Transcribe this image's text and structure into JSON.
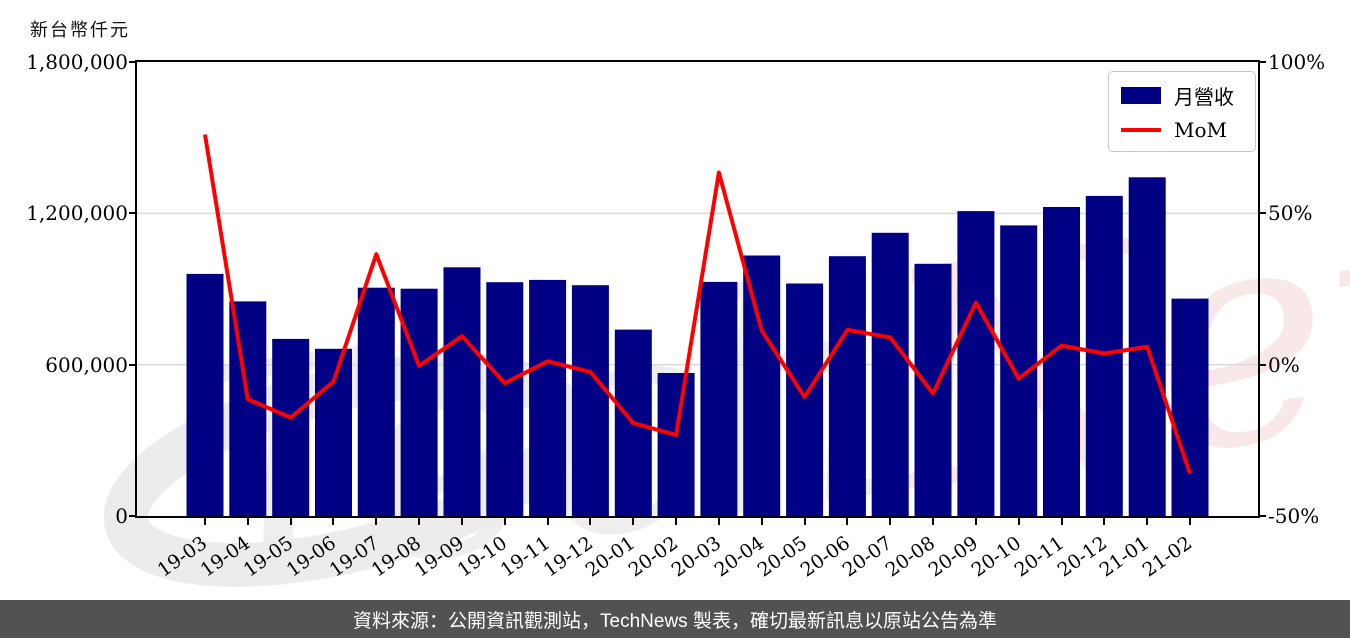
{
  "unit_label": "新台幣仟元",
  "legend": {
    "bar_label": "月營收",
    "line_label": "MoM"
  },
  "footer": {
    "text": "資料來源：公開資訊觀測站，TechNews 製表，確切最新訊息以原站公告為準"
  },
  "watermark": {
    "part1": "Tech",
    "part2": "News"
  },
  "colors": {
    "bar": "#000084",
    "line": "#ff0000",
    "grid": "#d9d9d9",
    "spine": "#000000",
    "footer_bg": "#525252",
    "watermark_gray": "#ececec",
    "watermark_pink": "#f9e4e4"
  },
  "chart_data": {
    "type": "bar",
    "title": "",
    "categories": [
      "19-03",
      "19-04",
      "19-05",
      "19-06",
      "19-07",
      "19-08",
      "19-09",
      "19-10",
      "19-11",
      "19-12",
      "20-01",
      "20-02",
      "20-03",
      "20-04",
      "20-05",
      "20-06",
      "20-07",
      "20-08",
      "20-09",
      "20-10",
      "20-11",
      "20-12",
      "21-01",
      "21-02"
    ],
    "series": [
      {
        "name": "月營收",
        "type": "bar",
        "axis": "left",
        "unit": "新台幣仟元",
        "values": [
          960000,
          851000,
          702000,
          663000,
          905000,
          901000,
          986000,
          927000,
          936000,
          915000,
          739000,
          567000,
          928000,
          1033000,
          922000,
          1030000,
          1123000,
          1000000,
          1209000,
          1152000,
          1225000,
          1269000,
          1343000,
          862000
        ]
      },
      {
        "name": "MoM",
        "type": "line",
        "axis": "right",
        "unit": "%",
        "values": [
          76.0,
          -11.4,
          -17.5,
          -5.6,
          36.5,
          -0.4,
          9.4,
          -6.1,
          1.1,
          -2.4,
          -19.3,
          -23.2,
          63.5,
          11.3,
          -10.7,
          11.5,
          9.0,
          -9.5,
          20.5,
          -4.6,
          6.3,
          3.7,
          5.9,
          -36.0
        ]
      }
    ],
    "left_axis": {
      "label": "新台幣仟元",
      "range": [
        0,
        1800000
      ],
      "ticks": [
        {
          "label": "1,800,000",
          "value": 1800000
        },
        {
          "label": "1,200,000",
          "value": 1200000
        },
        {
          "label": "600,000",
          "value": 600000
        },
        {
          "label": "0",
          "value": 0
        }
      ]
    },
    "right_axis": {
      "label": "MoM %",
      "range": [
        -50,
        100
      ],
      "ticks": [
        {
          "label": "100%",
          "value": 100
        },
        {
          "label": "50%",
          "value": 50
        },
        {
          "label": "0%",
          "value": 0
        },
        {
          "label": "-50%",
          "value": -50
        }
      ]
    },
    "grid": "horizontal",
    "legend_position": "upper-right"
  }
}
